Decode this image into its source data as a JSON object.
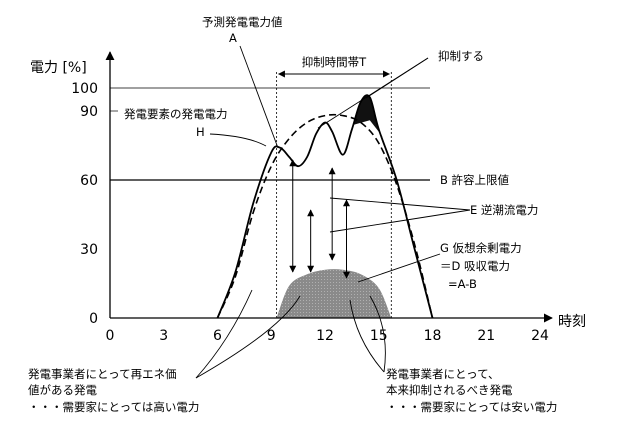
{
  "chart_data": {
    "type": "line",
    "ylabel": "電力 [%]",
    "xlabel": "時刻",
    "x_ticks": [
      0,
      3,
      6,
      9,
      12,
      15,
      18,
      21,
      24
    ],
    "y_ticks": [
      0,
      30,
      60,
      90,
      100
    ],
    "xlim": [
      0,
      24
    ],
    "ylim": [
      0,
      110
    ],
    "grid": false,
    "series": [
      {
        "name": "予測発電電力値",
        "style": "dashed",
        "x": [
          6,
          7,
          8,
          9,
          10,
          11,
          12,
          13,
          14,
          15,
          16,
          17,
          18
        ],
        "y": [
          0,
          18,
          46,
          66,
          78,
          85,
          88,
          88,
          85,
          76,
          58,
          32,
          0
        ]
      },
      {
        "name": "発電要素の発電電力",
        "style": "solid",
        "x": [
          6,
          7,
          8,
          9,
          9.5,
          10,
          10.5,
          11,
          11.5,
          12,
          12.4,
          13,
          13.5,
          14,
          14.5,
          15,
          16,
          17,
          18
        ],
        "y": [
          0,
          20,
          50,
          72,
          74,
          70,
          66,
          70,
          80,
          85,
          81,
          71,
          82,
          94,
          96,
          82,
          60,
          30,
          0
        ]
      },
      {
        "name": "D 吸収電力",
        "style": "filled",
        "x": [
          9.3,
          10,
          11,
          12,
          13,
          14,
          15,
          15.7
        ],
        "y": [
          0,
          14,
          19,
          21,
          21,
          19,
          13,
          0
        ]
      }
    ],
    "allowed_upper_limit": 60,
    "curtailment_window": [
      9.3,
      15.7
    ],
    "annotations": {
      "forecast_label": "予測発電電力値",
      "forecast_letter": "A",
      "window_label": "抑制時間帯T",
      "curtail_label": "抑制する",
      "generation_label": "発電要素の発電電力",
      "generation_letter": "H",
      "limit_label": "B  許容上限値",
      "reverse_flow_label": "E  逆潮流電力",
      "virtual_surplus_line1": "G  仮想余剰電力",
      "virtual_surplus_line2": "＝D  吸収電力",
      "virtual_surplus_line3": "=A-B",
      "note_left_1": "発電事業者にとって再エネ価",
      "note_left_2": "値がある発電",
      "note_left_3": "・・・需要家にとっては高い電力",
      "note_right_1": "発電事業者にとって、",
      "note_right_2": "本来抑制されるべき発電",
      "note_right_3": "・・・需要家にとっては安い電力"
    }
  }
}
